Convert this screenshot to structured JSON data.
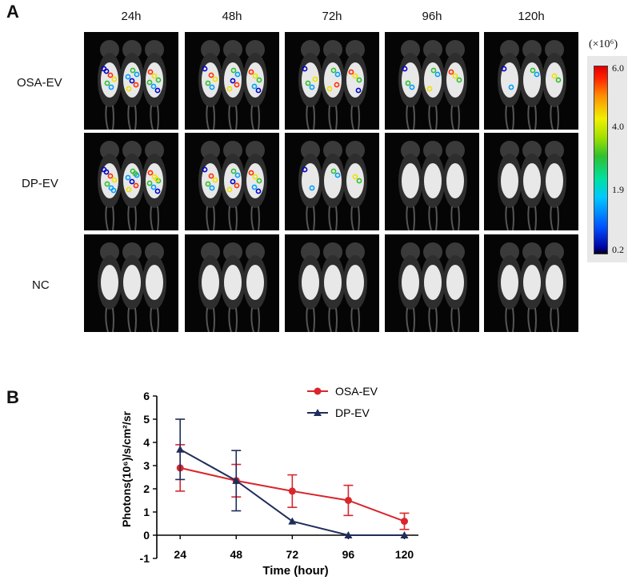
{
  "panels": {
    "a_letter": "A",
    "b_letter": "B"
  },
  "imaging": {
    "timepoints": [
      "24h",
      "48h",
      "72h",
      "96h",
      "120h"
    ],
    "groups": [
      "OSA-EV",
      "DP-EV",
      "NC"
    ],
    "signal_intensity": [
      [
        0.9,
        0.7,
        0.55,
        0.4,
        0.3
      ],
      [
        1.0,
        0.75,
        0.3,
        0.0,
        0.0
      ],
      [
        0.0,
        0.0,
        0.0,
        0.0,
        0.0
      ]
    ],
    "colorbar": {
      "unit": "(×10⁶)",
      "ticks": [
        "6.0",
        "4.0",
        "1.9",
        "0.2"
      ],
      "colors": {
        "low": "#0000a0",
        "mid_low": "#00c8ff",
        "mid": "#30c030",
        "mid_high": "#f0f000",
        "high": "#e00000"
      }
    }
  },
  "chart_data": {
    "type": "line",
    "x": [
      24,
      48,
      72,
      96,
      120
    ],
    "xlabel": "Time (hour)",
    "ylabel": "Photons(10⁶)/s/cm²/sr",
    "ylim": [
      -1,
      6
    ],
    "yticks": [
      "-1",
      "0",
      "1",
      "2",
      "3",
      "4",
      "5",
      "6"
    ],
    "xticks": [
      "24",
      "48",
      "72",
      "96",
      "120"
    ],
    "legend_position": "top",
    "series": [
      {
        "name": "OSA-EV",
        "marker": "circle",
        "color": "#d9262c",
        "values": [
          2.9,
          2.35,
          1.9,
          1.5,
          0.6
        ],
        "errors": [
          1.0,
          0.7,
          0.7,
          0.65,
          0.35
        ]
      },
      {
        "name": "DP-EV",
        "marker": "triangle",
        "color": "#1f2d5c",
        "values": [
          3.7,
          2.35,
          0.6,
          0.0,
          0.0
        ],
        "errors": [
          1.3,
          1.3,
          0.0,
          0.0,
          0.0
        ]
      }
    ]
  }
}
